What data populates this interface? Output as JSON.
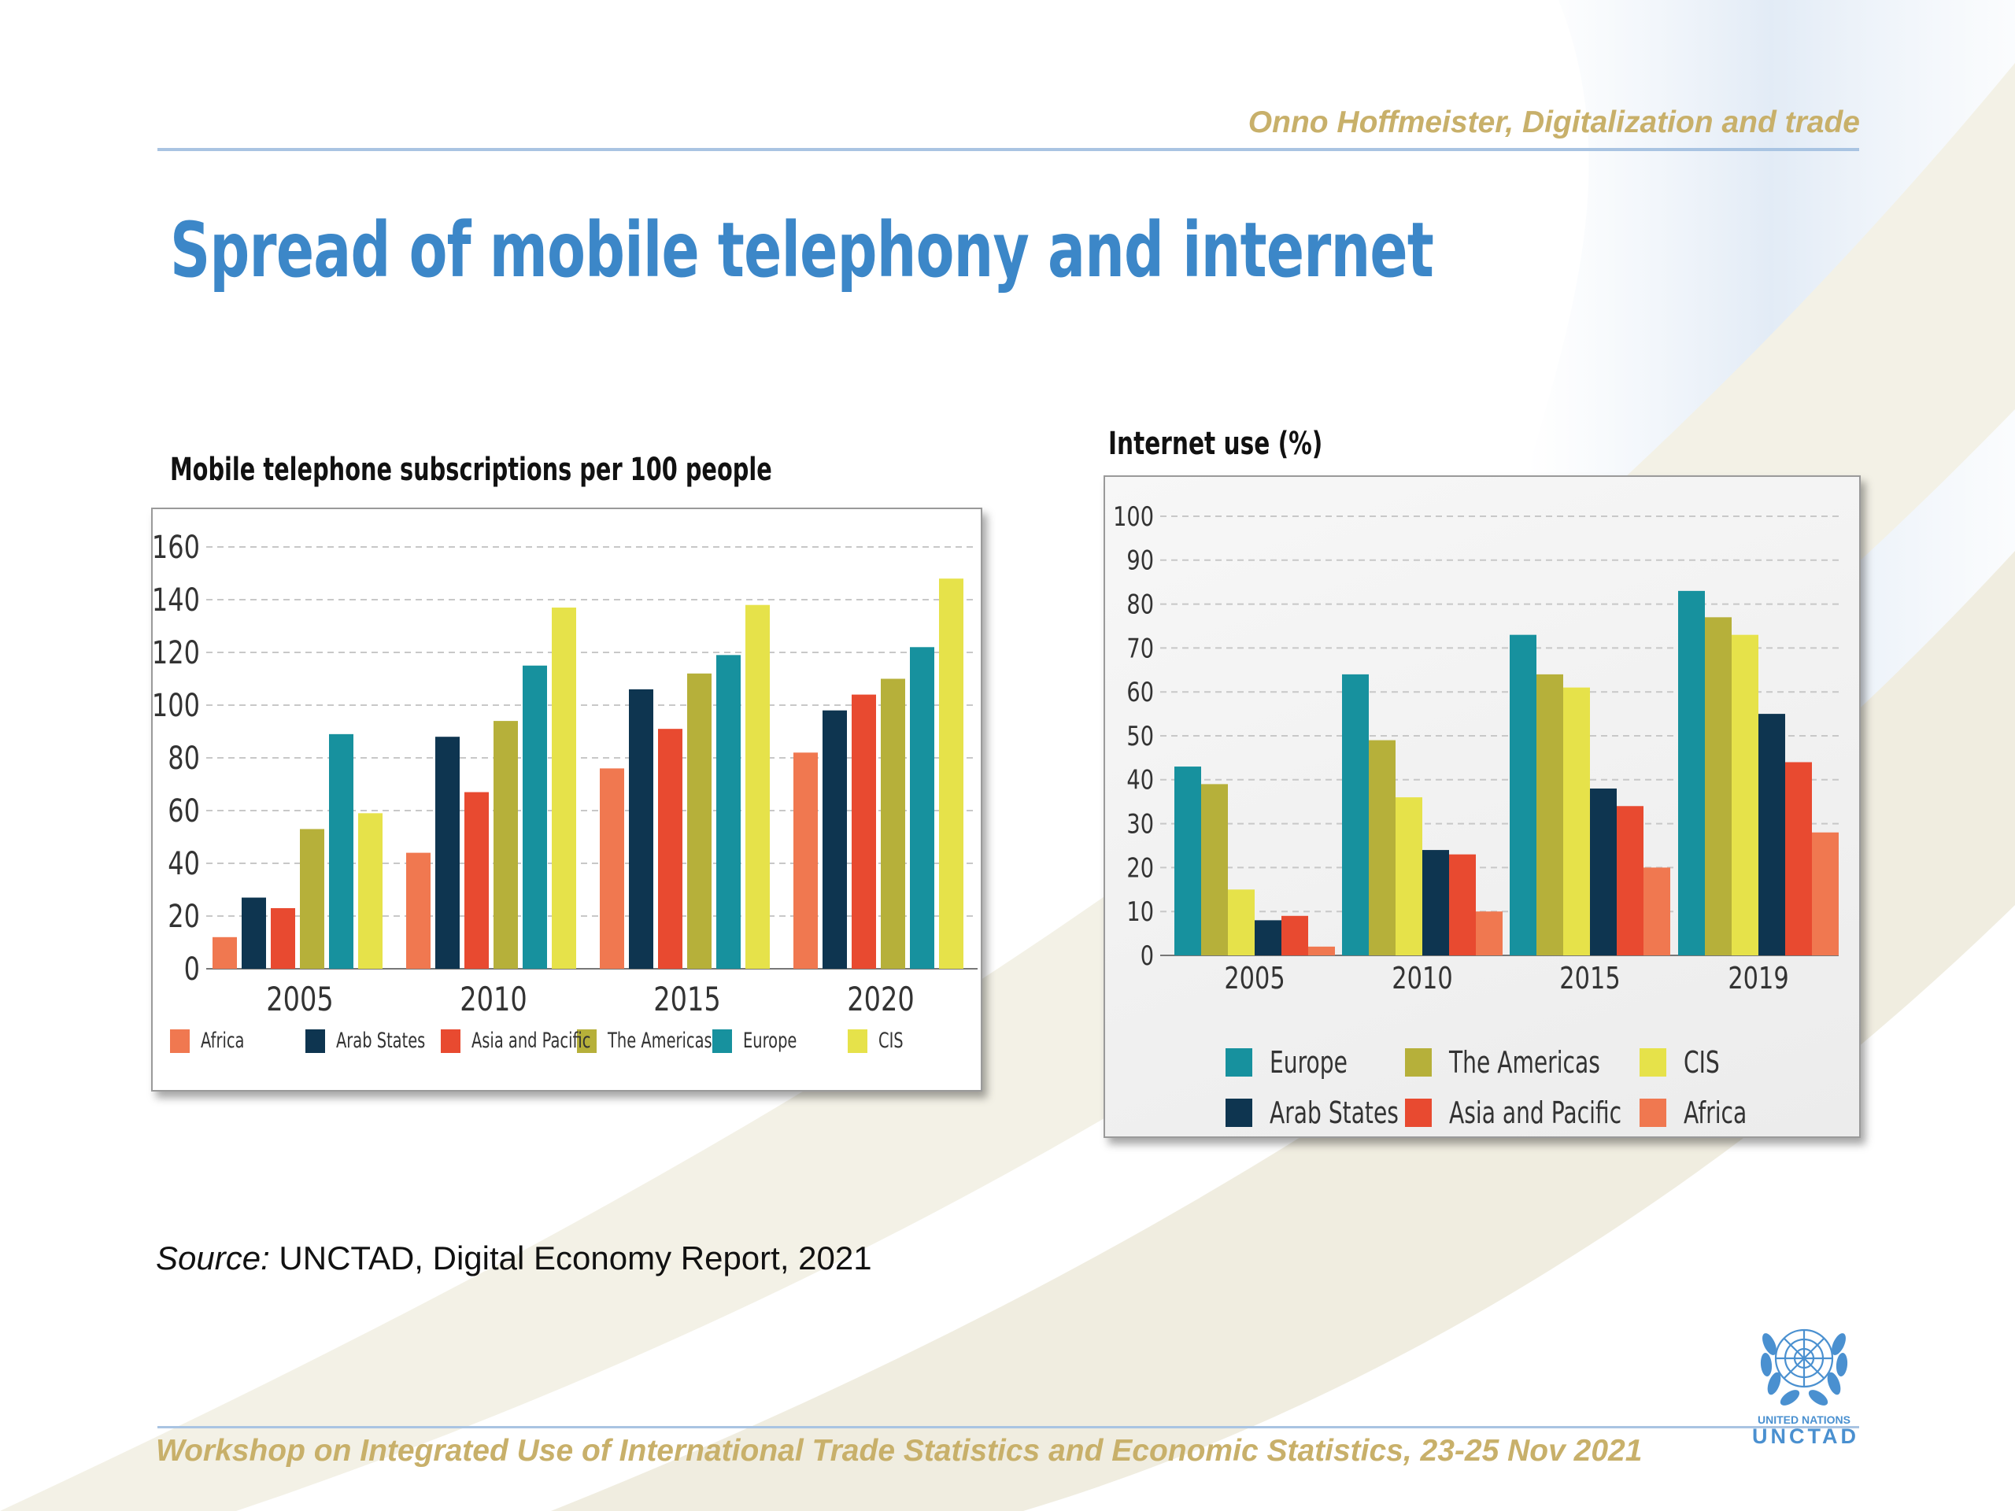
{
  "header": {
    "author_line": "Onno Hoffmeister, Digitalization and trade"
  },
  "slide_title": "Spread of mobile telephony and internet",
  "colors": {
    "Africa": "#f07850",
    "Arab States": "#0e3550",
    "Asia and Pacific": "#e84a30",
    "The Americas": "#b6b03a",
    "Europe": "#17919e",
    "CIS": "#e6e24a",
    "title_blue": "#3c87c8",
    "accent_gold": "#c8b06a"
  },
  "chart_data": [
    {
      "type": "bar",
      "title": "Mobile telephone subscriptions per 100 people",
      "categories": [
        "2005",
        "2010",
        "2015",
        "2020"
      ],
      "ylim": [
        0,
        160
      ],
      "yticks": [
        "0",
        "20",
        "40",
        "60",
        "80",
        "100",
        "120",
        "140",
        "160"
      ],
      "grid": true,
      "legend_position": "bottom",
      "series": [
        {
          "name": "Africa",
          "values": [
            12,
            44,
            76,
            82
          ]
        },
        {
          "name": "Arab States",
          "values": [
            27,
            88,
            106,
            98
          ]
        },
        {
          "name": "Asia and Pacific",
          "values": [
            23,
            67,
            91,
            104
          ]
        },
        {
          "name": "The Americas",
          "values": [
            53,
            94,
            112,
            110
          ]
        },
        {
          "name": "Europe",
          "values": [
            89,
            115,
            119,
            122
          ]
        },
        {
          "name": "CIS",
          "values": [
            59,
            137,
            138,
            148
          ]
        }
      ]
    },
    {
      "type": "bar",
      "title": "Internet use (%)",
      "categories": [
        "2005",
        "2010",
        "2015",
        "2019"
      ],
      "ylim": [
        0,
        100
      ],
      "yticks": [
        "0",
        "10",
        "20",
        "30",
        "40",
        "50",
        "60",
        "70",
        "80",
        "90",
        "100"
      ],
      "grid": true,
      "legend_position": "bottom",
      "legend_order": [
        "Europe",
        "The Americas",
        "CIS",
        "Arab States",
        "Asia and Pacific",
        "Africa"
      ],
      "series": [
        {
          "name": "Europe",
          "values": [
            43,
            64,
            73,
            83
          ]
        },
        {
          "name": "The Americas",
          "values": [
            39,
            49,
            64,
            77
          ]
        },
        {
          "name": "CIS",
          "values": [
            15,
            36,
            61,
            73
          ]
        },
        {
          "name": "Arab States",
          "values": [
            8,
            24,
            38,
            55
          ]
        },
        {
          "name": "Asia and Pacific",
          "values": [
            9,
            23,
            34,
            44
          ]
        },
        {
          "name": "Africa",
          "values": [
            2,
            10,
            20,
            28
          ]
        }
      ]
    }
  ],
  "source": {
    "label": "Source:",
    "text": " UNCTAD, Digital Economy Report, 2021"
  },
  "footer": {
    "text": "Workshop on Integrated Use of International Trade Statistics and Economic Statistics, 23-25 Nov 2021"
  },
  "logo": {
    "line1": "UNITED NATIONS",
    "line2": "UNCTAD"
  }
}
